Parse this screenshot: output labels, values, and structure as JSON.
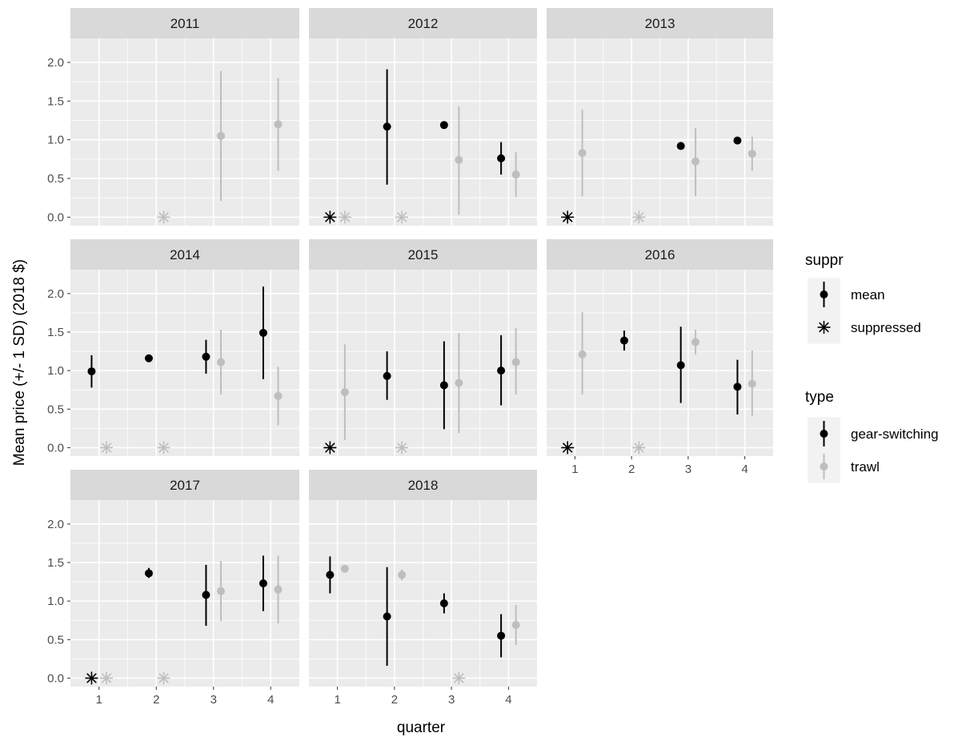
{
  "colors": {
    "gear-switching": "#000000",
    "trawl": "#bebebe",
    "panel_bg": "#ebebeb",
    "strip_bg": "#d9d9d9",
    "grid": "#ffffff",
    "legend_key_bg": "#f2f2f2"
  },
  "chart_data": {
    "type": "scatter",
    "subtype": "faceted point-range (mean ± 1 SD) with suppressed markers",
    "xlabel": "quarter",
    "ylabel": "Mean price (+/- 1 SD) (2018 $)",
    "x_ticks": [
      "1",
      "2",
      "3",
      "4"
    ],
    "xlim": [
      0.5,
      4.5
    ],
    "y_ticks": [
      "0.0",
      "0.5",
      "1.0",
      "1.5",
      "2.0"
    ],
    "ylim": [
      -0.11,
      2.31
    ],
    "grid": true,
    "legend": {
      "placement": "right",
      "groups": [
        {
          "title": "suppr",
          "entries": [
            {
              "label": "mean",
              "shape": "point-range"
            },
            {
              "label": "suppressed",
              "shape": "asterisk"
            }
          ]
        },
        {
          "title": "type",
          "entries": [
            {
              "label": "gear-switching",
              "color": "#000000"
            },
            {
              "label": "trawl",
              "color": "#bebebe"
            }
          ]
        }
      ]
    },
    "facets": [
      {
        "year": "2011",
        "points": [
          {
            "type": "trawl",
            "quarter": 2,
            "suppr": "suppressed",
            "mean": 0
          },
          {
            "type": "trawl",
            "quarter": 3,
            "suppr": "mean",
            "mean": 1.05,
            "low": 0.21,
            "high": 1.89
          },
          {
            "type": "trawl",
            "quarter": 4,
            "suppr": "mean",
            "mean": 1.2,
            "low": 0.6,
            "high": 1.8
          }
        ]
      },
      {
        "year": "2012",
        "points": [
          {
            "type": "gear-switching",
            "quarter": 1,
            "suppr": "suppressed",
            "mean": 0
          },
          {
            "type": "trawl",
            "quarter": 1,
            "suppr": "suppressed",
            "mean": 0
          },
          {
            "type": "gear-switching",
            "quarter": 2,
            "suppr": "mean",
            "mean": 1.17,
            "low": 0.42,
            "high": 1.91
          },
          {
            "type": "trawl",
            "quarter": 2,
            "suppr": "suppressed",
            "mean": 0
          },
          {
            "type": "gear-switching",
            "quarter": 3,
            "suppr": "mean",
            "mean": 1.19,
            "low": 1.15,
            "high": 1.24
          },
          {
            "type": "trawl",
            "quarter": 3,
            "suppr": "mean",
            "mean": 0.74,
            "low": 0.03,
            "high": 1.43
          },
          {
            "type": "gear-switching",
            "quarter": 4,
            "suppr": "mean",
            "mean": 0.76,
            "low": 0.55,
            "high": 0.97
          },
          {
            "type": "trawl",
            "quarter": 4,
            "suppr": "mean",
            "mean": 0.55,
            "low": 0.26,
            "high": 0.84
          }
        ]
      },
      {
        "year": "2013",
        "points": [
          {
            "type": "gear-switching",
            "quarter": 1,
            "suppr": "suppressed",
            "mean": 0
          },
          {
            "type": "trawl",
            "quarter": 1,
            "suppr": "mean",
            "mean": 0.83,
            "low": 0.27,
            "high": 1.39
          },
          {
            "type": "trawl",
            "quarter": 2,
            "suppr": "suppressed",
            "mean": 0
          },
          {
            "type": "gear-switching",
            "quarter": 3,
            "suppr": "mean",
            "mean": 0.92,
            "low": 0.88,
            "high": 0.96
          },
          {
            "type": "trawl",
            "quarter": 3,
            "suppr": "mean",
            "mean": 0.72,
            "low": 0.27,
            "high": 1.15
          },
          {
            "type": "gear-switching",
            "quarter": 4,
            "suppr": "mean",
            "mean": 0.99,
            "low": 0.96,
            "high": 1.02
          },
          {
            "type": "trawl",
            "quarter": 4,
            "suppr": "mean",
            "mean": 0.82,
            "low": 0.6,
            "high": 1.04
          }
        ]
      },
      {
        "year": "2014",
        "points": [
          {
            "type": "gear-switching",
            "quarter": 1,
            "suppr": "mean",
            "mean": 0.99,
            "low": 0.78,
            "high": 1.2
          },
          {
            "type": "trawl",
            "quarter": 1,
            "suppr": "suppressed",
            "mean": 0
          },
          {
            "type": "gear-switching",
            "quarter": 2,
            "suppr": "mean",
            "mean": 1.16,
            "low": 1.13,
            "high": 1.2
          },
          {
            "type": "trawl",
            "quarter": 2,
            "suppr": "suppressed",
            "mean": 0
          },
          {
            "type": "gear-switching",
            "quarter": 3,
            "suppr": "mean",
            "mean": 1.18,
            "low": 0.96,
            "high": 1.4
          },
          {
            "type": "trawl",
            "quarter": 3,
            "suppr": "mean",
            "mean": 1.11,
            "low": 0.69,
            "high": 1.53
          },
          {
            "type": "gear-switching",
            "quarter": 4,
            "suppr": "mean",
            "mean": 1.49,
            "low": 0.89,
            "high": 2.09
          },
          {
            "type": "trawl",
            "quarter": 4,
            "suppr": "mean",
            "mean": 0.67,
            "low": 0.29,
            "high": 1.05
          }
        ]
      },
      {
        "year": "2015",
        "points": [
          {
            "type": "gear-switching",
            "quarter": 1,
            "suppr": "suppressed",
            "mean": 0
          },
          {
            "type": "trawl",
            "quarter": 1,
            "suppr": "mean",
            "mean": 0.72,
            "low": 0.1,
            "high": 1.34
          },
          {
            "type": "gear-switching",
            "quarter": 2,
            "suppr": "mean",
            "mean": 0.93,
            "low": 0.62,
            "high": 1.25
          },
          {
            "type": "trawl",
            "quarter": 2,
            "suppr": "suppressed",
            "mean": 0
          },
          {
            "type": "gear-switching",
            "quarter": 3,
            "suppr": "mean",
            "mean": 0.81,
            "low": 0.24,
            "high": 1.38
          },
          {
            "type": "trawl",
            "quarter": 3,
            "suppr": "mean",
            "mean": 0.84,
            "low": 0.19,
            "high": 1.49
          },
          {
            "type": "gear-switching",
            "quarter": 4,
            "suppr": "mean",
            "mean": 1.0,
            "low": 0.55,
            "high": 1.46
          },
          {
            "type": "trawl",
            "quarter": 4,
            "suppr": "mean",
            "mean": 1.11,
            "low": 0.69,
            "high": 1.55
          }
        ]
      },
      {
        "year": "2016",
        "points": [
          {
            "type": "gear-switching",
            "quarter": 1,
            "suppr": "suppressed",
            "mean": 0
          },
          {
            "type": "trawl",
            "quarter": 1,
            "suppr": "mean",
            "mean": 1.21,
            "low": 0.69,
            "high": 1.76
          },
          {
            "type": "gear-switching",
            "quarter": 2,
            "suppr": "mean",
            "mean": 1.39,
            "low": 1.26,
            "high": 1.52
          },
          {
            "type": "trawl",
            "quarter": 2,
            "suppr": "suppressed",
            "mean": 0
          },
          {
            "type": "gear-switching",
            "quarter": 3,
            "suppr": "mean",
            "mean": 1.07,
            "low": 0.58,
            "high": 1.57
          },
          {
            "type": "trawl",
            "quarter": 3,
            "suppr": "mean",
            "mean": 1.37,
            "low": 1.21,
            "high": 1.53
          },
          {
            "type": "gear-switching",
            "quarter": 4,
            "suppr": "mean",
            "mean": 0.79,
            "low": 0.43,
            "high": 1.14
          },
          {
            "type": "trawl",
            "quarter": 4,
            "suppr": "mean",
            "mean": 0.83,
            "low": 0.41,
            "high": 1.26
          }
        ]
      },
      {
        "year": "2017",
        "points": [
          {
            "type": "gear-switching",
            "quarter": 1,
            "suppr": "suppressed",
            "mean": 0
          },
          {
            "type": "trawl",
            "quarter": 1,
            "suppr": "suppressed",
            "mean": 0
          },
          {
            "type": "gear-switching",
            "quarter": 2,
            "suppr": "mean",
            "mean": 1.36,
            "low": 1.3,
            "high": 1.43
          },
          {
            "type": "trawl",
            "quarter": 2,
            "suppr": "suppressed",
            "mean": 0
          },
          {
            "type": "gear-switching",
            "quarter": 3,
            "suppr": "mean",
            "mean": 1.08,
            "low": 0.68,
            "high": 1.47
          },
          {
            "type": "trawl",
            "quarter": 3,
            "suppr": "mean",
            "mean": 1.13,
            "low": 0.74,
            "high": 1.52
          },
          {
            "type": "gear-switching",
            "quarter": 4,
            "suppr": "mean",
            "mean": 1.23,
            "low": 0.87,
            "high": 1.59
          },
          {
            "type": "trawl",
            "quarter": 4,
            "suppr": "mean",
            "mean": 1.15,
            "low": 0.71,
            "high": 1.59
          }
        ]
      },
      {
        "year": "2018",
        "points": [
          {
            "type": "gear-switching",
            "quarter": 1,
            "suppr": "mean",
            "mean": 1.34,
            "low": 1.1,
            "high": 1.58
          },
          {
            "type": "trawl",
            "quarter": 1,
            "suppr": "mean",
            "mean": 1.42,
            "low": 1.4,
            "high": 1.45
          },
          {
            "type": "gear-switching",
            "quarter": 2,
            "suppr": "mean",
            "mean": 0.8,
            "low": 0.16,
            "high": 1.44
          },
          {
            "type": "trawl",
            "quarter": 2,
            "suppr": "mean",
            "mean": 1.34,
            "low": 1.27,
            "high": 1.41
          },
          {
            "type": "gear-switching",
            "quarter": 3,
            "suppr": "mean",
            "mean": 0.97,
            "low": 0.84,
            "high": 1.1
          },
          {
            "type": "trawl",
            "quarter": 3,
            "suppr": "suppressed",
            "mean": 0
          },
          {
            "type": "gear-switching",
            "quarter": 4,
            "suppr": "mean",
            "mean": 0.55,
            "low": 0.27,
            "high": 0.83
          },
          {
            "type": "trawl",
            "quarter": 4,
            "suppr": "mean",
            "mean": 0.69,
            "low": 0.43,
            "high": 0.95
          }
        ]
      }
    ]
  }
}
